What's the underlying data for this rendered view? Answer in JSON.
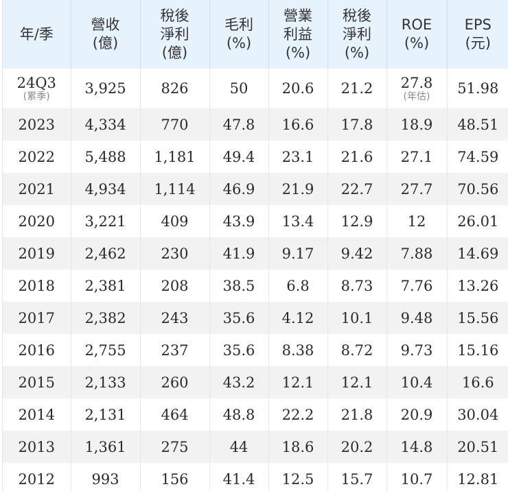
{
  "table": {
    "headers": [
      {
        "lines": [
          "年/季"
        ]
      },
      {
        "lines": [
          "營收",
          "(億)"
        ]
      },
      {
        "lines": [
          "稅後",
          "淨利",
          "(億)"
        ]
      },
      {
        "lines": [
          "毛利",
          "(%)"
        ]
      },
      {
        "lines": [
          "營業",
          "利益",
          "(%)"
        ]
      },
      {
        "lines": [
          "稅後",
          "淨利",
          "(%)"
        ]
      },
      {
        "lines": [
          "ROE",
          "(%)"
        ]
      },
      {
        "lines": [
          "EPS",
          "(元)"
        ]
      }
    ],
    "first_row": {
      "period": "24Q3",
      "period_note": "(累季)",
      "revenue": "3,925",
      "net_income": "826",
      "gross_margin": "50",
      "operating_margin": "20.6",
      "net_margin": "21.2",
      "roe": "27.8",
      "roe_note": "(年估)",
      "eps": "51.98"
    },
    "rows": [
      [
        "2023",
        "4,334",
        "770",
        "47.8",
        "16.6",
        "17.8",
        "18.9",
        "48.51"
      ],
      [
        "2022",
        "5,488",
        "1,181",
        "49.4",
        "23.1",
        "21.6",
        "27.1",
        "74.59"
      ],
      [
        "2021",
        "4,934",
        "1,114",
        "46.9",
        "21.9",
        "22.7",
        "27.7",
        "70.56"
      ],
      [
        "2020",
        "3,221",
        "409",
        "43.9",
        "13.4",
        "12.9",
        "12",
        "26.01"
      ],
      [
        "2019",
        "2,462",
        "230",
        "41.9",
        "9.17",
        "9.42",
        "7.88",
        "14.69"
      ],
      [
        "2018",
        "2,381",
        "208",
        "38.5",
        "6.8",
        "8.73",
        "7.76",
        "13.26"
      ],
      [
        "2017",
        "2,382",
        "243",
        "35.6",
        "4.12",
        "10.1",
        "9.48",
        "15.56"
      ],
      [
        "2016",
        "2,755",
        "237",
        "35.6",
        "8.38",
        "8.72",
        "9.73",
        "15.16"
      ],
      [
        "2015",
        "2,133",
        "260",
        "43.2",
        "12.1",
        "12.1",
        "10.4",
        "16.6"
      ],
      [
        "2014",
        "2,131",
        "464",
        "48.8",
        "22.2",
        "21.8",
        "20.9",
        "30.04"
      ],
      [
        "2013",
        "1,361",
        "275",
        "44",
        "18.6",
        "20.2",
        "14.8",
        "20.51"
      ],
      [
        "2012",
        "993",
        "156",
        "41.4",
        "12.5",
        "15.7",
        "10.7",
        "12.81"
      ]
    ]
  }
}
